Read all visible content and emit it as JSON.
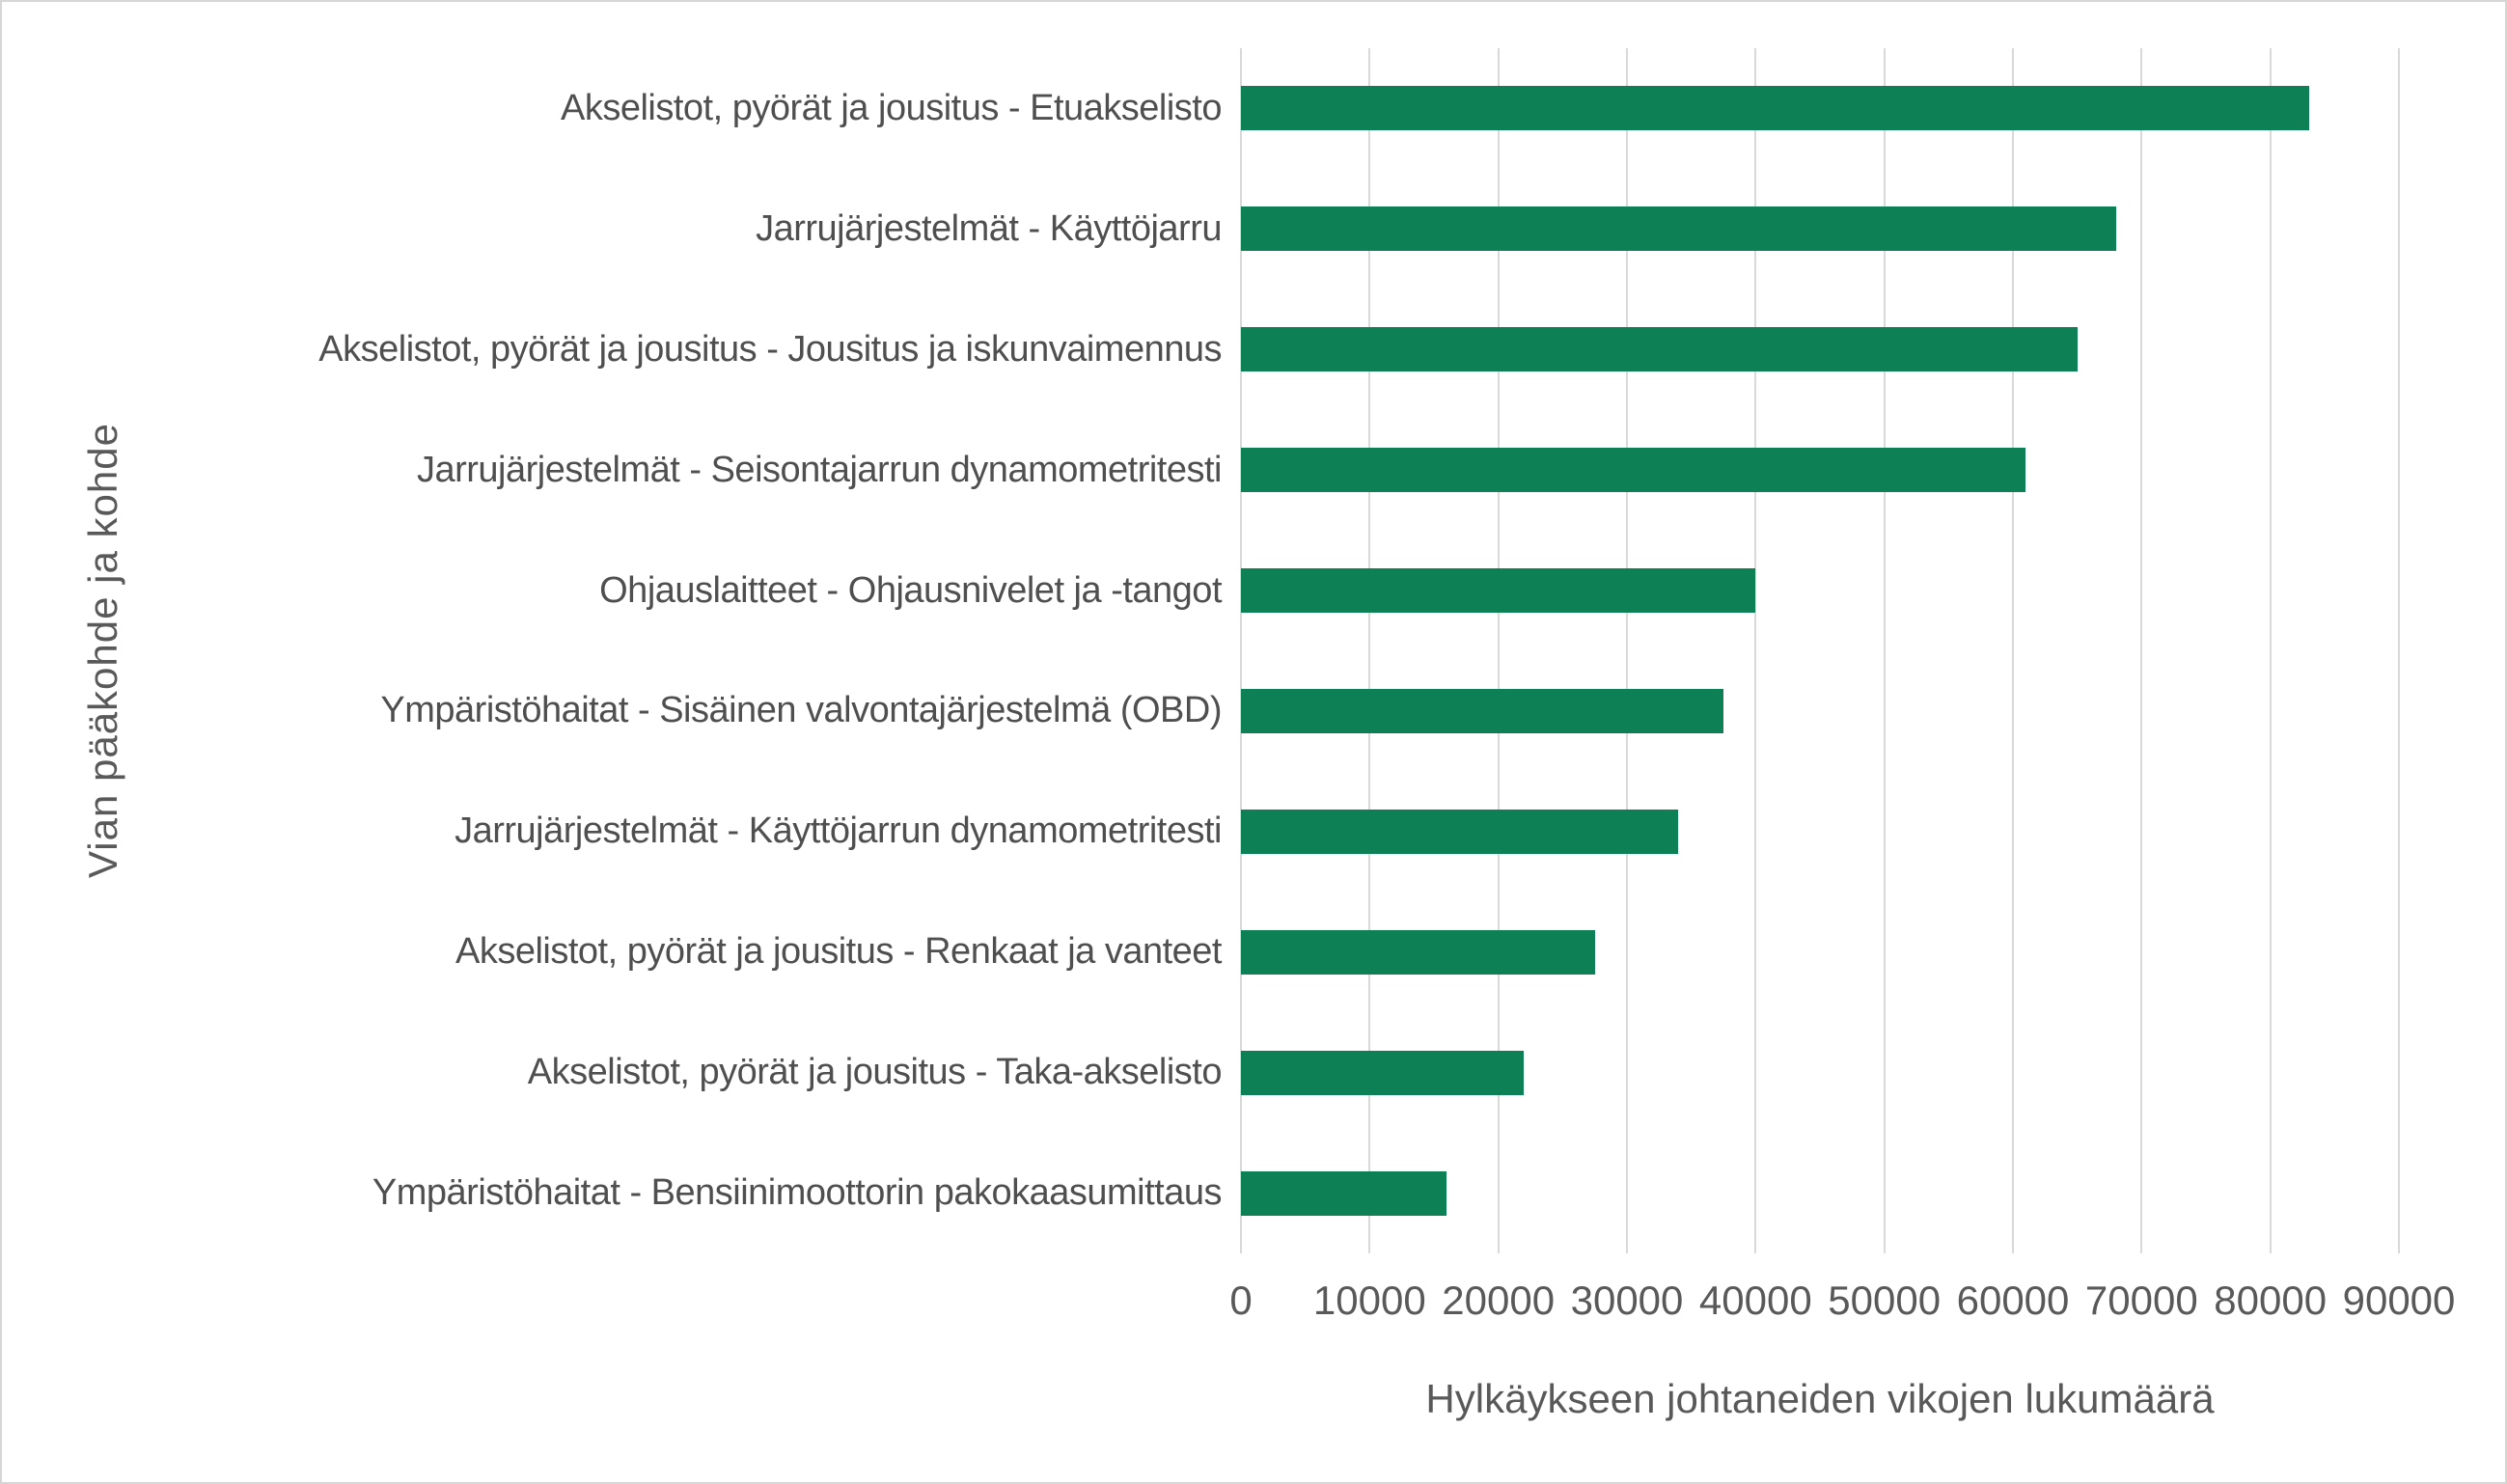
{
  "chart_data": {
    "type": "bar",
    "orientation": "horizontal",
    "title": "",
    "xlabel": "Hylkäykseen johtaneiden vikojen lukumäärä",
    "ylabel": "Vian pääkohde ja kohde",
    "categories": [
      "Akselistot, pyörät ja jousitus - Etuakselisto",
      "Jarrujärjestelmät - Käyttöjarru",
      "Akselistot, pyörät ja jousitus - Jousitus ja iskunvaimennus",
      "Jarrujärjestelmät - Seisontajarrun dynamometritesti",
      "Ohjauslaitteet - Ohjausnivelet ja -tangot",
      "Ympäristöhaitat - Sisäinen valvontajärjestelmä (OBD)",
      "Jarrujärjestelmät - Käyttöjarrun dynamometritesti",
      "Akselistot, pyörät ja jousitus - Renkaat ja vanteet",
      "Akselistot, pyörät ja jousitus - Taka-akselisto",
      "Ympäristöhaitat - Bensiinimoottorin pakokaasumittaus"
    ],
    "values": [
      83000,
      68000,
      65000,
      61000,
      40000,
      37500,
      34000,
      27500,
      22000,
      16000
    ],
    "xlim": [
      0,
      90000
    ],
    "xticks": [
      0,
      10000,
      20000,
      30000,
      40000,
      50000,
      60000,
      70000,
      80000,
      90000
    ],
    "tick_labels": [
      "0",
      "10000",
      "20000",
      "30000",
      "40000",
      "50000",
      "60000",
      "70000",
      "80000",
      "90000"
    ],
    "grid": "vertical",
    "legend": "none",
    "bar_color": "#0d8056",
    "gridline_color": "#d9d9d9",
    "text_color": "#595959"
  }
}
